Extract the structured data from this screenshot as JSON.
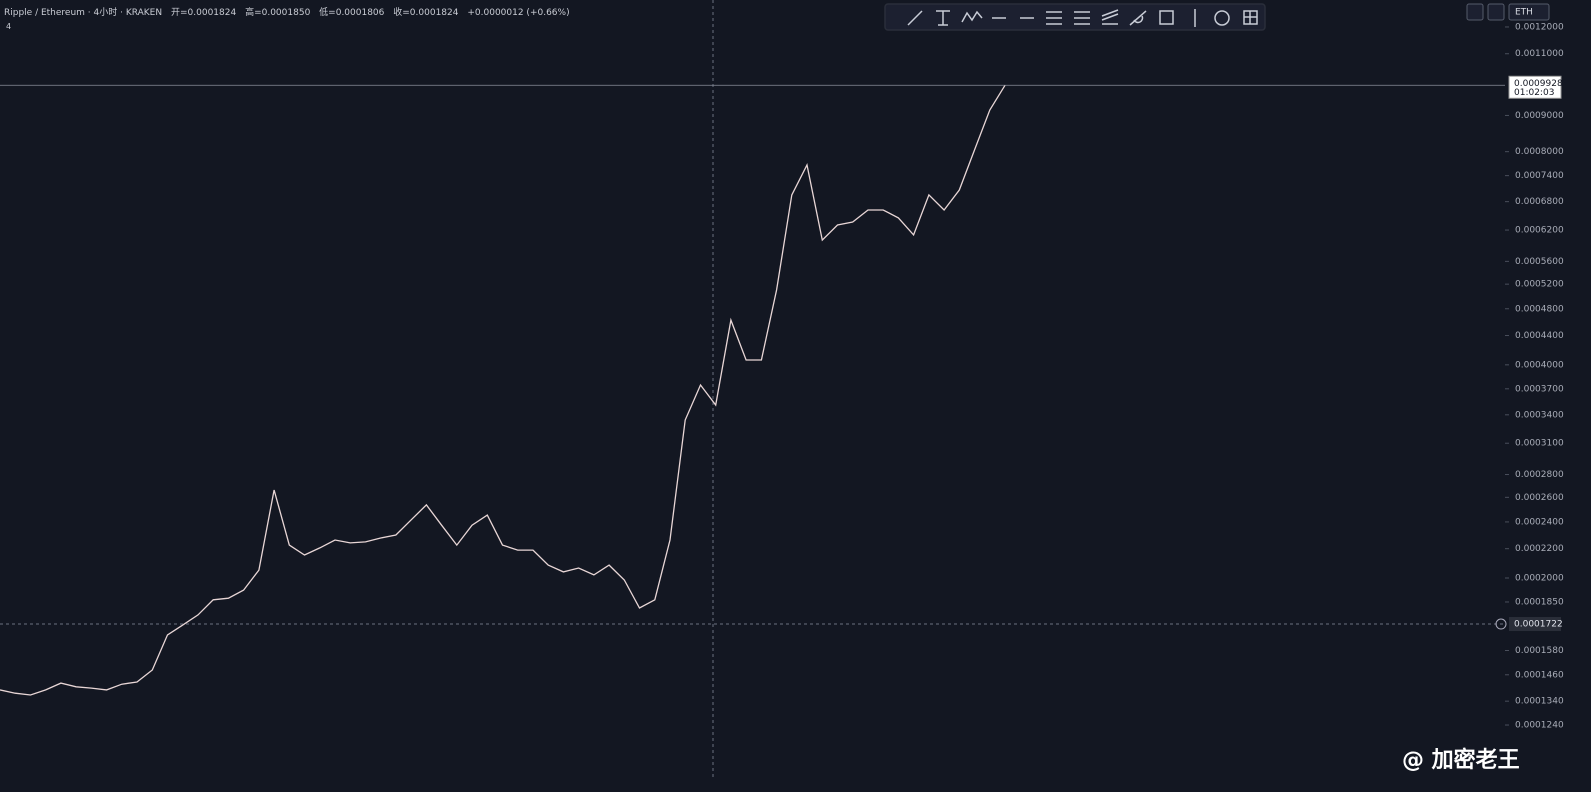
{
  "header": {
    "symbol": "Ripple / Ethereum · 4小时 · KRAKEN",
    "open": "开=0.0001824",
    "high": "高=0.0001850",
    "low": "低=0.0001806",
    "close": "收=0.0001824",
    "change": "+0.0000012 (+0.66%)",
    "badge": "4",
    "currency": "ETH",
    "watermark": "@ 加密老王"
  },
  "chart_data": {
    "type": "line",
    "log_scale": true,
    "color": "#e8d6d6",
    "categories": [
      null,
      null,
      null,
      null,
      null,
      null,
      null,
      null,
      null,
      null,
      null,
      null,
      null,
      null,
      null,
      null,
      null,
      null,
      null,
      null,
      null,
      null,
      null,
      null,
      null,
      null,
      null,
      null,
      null,
      null,
      null,
      null,
      null,
      null,
      null,
      null,
      null,
      null,
      null,
      null,
      null,
      null,
      null,
      null,
      null,
      null,
      null,
      null,
      null,
      null,
      null,
      null,
      null,
      null,
      null,
      null,
      null,
      null,
      null,
      null,
      null,
      null,
      null,
      null,
      null,
      null,
      null
    ],
    "values": [
      0.000139,
      0.0001375,
      0.0001367,
      0.000139,
      0.0001421,
      0.0001404,
      0.0001398,
      0.000139,
      0.0001416,
      0.0001426,
      0.0001483,
      0.0001662,
      0.0001716,
      0.0001774,
      0.0001863,
      0.0001873,
      0.0001923,
      0.0002052,
      0.0002663,
      0.0002226,
      0.0002155,
      0.0002206,
      0.0002263,
      0.0002242,
      0.0002249,
      0.0002278,
      0.00023,
      0.0002416,
      0.0002537,
      0.0002375,
      0.0002226,
      0.0002375,
      0.0002454,
      0.0002226,
      0.000219,
      0.000219,
      0.0002086,
      0.000204,
      0.0002066,
      0.000202,
      0.0002086,
      0.0001987,
      0.0001814,
      0.0001863,
      0.0002263,
      0.0003343,
      0.0003746,
      0.000351,
      0.0004627,
      0.0004063,
      0.0004063,
      0.0005104,
      0.0006952,
      0.000766,
      0.0006001,
      0.0006302,
      0.0006365,
      0.0006618,
      0.0006618,
      0.0006449,
      0.0006103,
      0.0006952,
      0.0006618,
      0.0007063,
      0.0008044,
      0.0009161,
      0.0009928
    ],
    "ylim": [
      0.0001037,
      0.00131
    ],
    "yticks": [
      {
        "value": 0.0012,
        "label": "0.0012000"
      },
      {
        "value": 0.0011,
        "label": "0.0011000"
      },
      {
        "value": 0.0009,
        "label": "0.0009000"
      },
      {
        "value": 0.0008,
        "label": "0.0008000"
      },
      {
        "value": 0.00074,
        "label": "0.0007400"
      },
      {
        "value": 0.00068,
        "label": "0.0006800"
      },
      {
        "value": 0.00062,
        "label": "0.0006200"
      },
      {
        "value": 0.00056,
        "label": "0.0005600"
      },
      {
        "value": 0.00052,
        "label": "0.0005200"
      },
      {
        "value": 0.00048,
        "label": "0.0004800"
      },
      {
        "value": 0.00044,
        "label": "0.0004400"
      },
      {
        "value": 0.0004,
        "label": "0.0004000"
      },
      {
        "value": 0.00037,
        "label": "0.0003700"
      },
      {
        "value": 0.00034,
        "label": "0.0003400"
      },
      {
        "value": 0.00031,
        "label": "0.0003100"
      },
      {
        "value": 0.00028,
        "label": "0.0002800"
      },
      {
        "value": 0.00026,
        "label": "0.0002600"
      },
      {
        "value": 0.00024,
        "label": "0.0002400"
      },
      {
        "value": 0.00022,
        "label": "0.0002200"
      },
      {
        "value": 0.0002,
        "label": "0.0002000"
      },
      {
        "value": 0.000185,
        "label": "0.0001850"
      },
      {
        "value": 0.000158,
        "label": "0.0001580"
      },
      {
        "value": 0.000146,
        "label": "0.0001460"
      },
      {
        "value": 0.000134,
        "label": "0.0001340"
      },
      {
        "value": 0.000124,
        "label": "0.0001240"
      }
    ],
    "last_price": {
      "value": 0.0009928,
      "label": "0.0009928",
      "countdown": "01:02:03"
    },
    "crosshair_price": {
      "value": 0.0001722,
      "label": "0.0001722"
    }
  }
}
